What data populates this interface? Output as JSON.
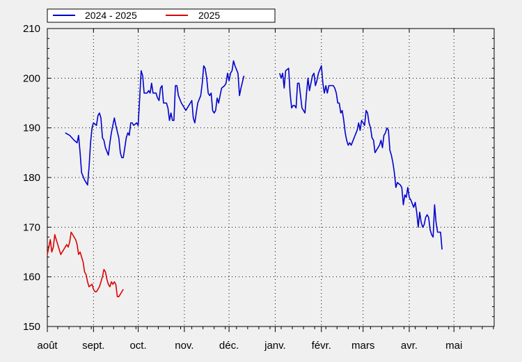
{
  "chart_data": {
    "type": "line",
    "title": "",
    "xlabel": "",
    "ylabel": "",
    "ylim": [
      150,
      210
    ],
    "yticks": [
      150,
      160,
      170,
      180,
      190,
      200,
      210
    ],
    "x_unit": "day index from start of August",
    "xlim": [
      0,
      300
    ],
    "xticks": [
      {
        "x": 0,
        "label": "août"
      },
      {
        "x": 31,
        "label": "sept."
      },
      {
        "x": 61,
        "label": "oct."
      },
      {
        "x": 92,
        "label": "nov."
      },
      {
        "x": 122,
        "label": "déc."
      },
      {
        "x": 153,
        "label": "janv."
      },
      {
        "x": 184,
        "label": "févr."
      },
      {
        "x": 212,
        "label": "mars"
      },
      {
        "x": 243,
        "label": "avr."
      },
      {
        "x": 273,
        "label": "mai"
      }
    ],
    "grid": true,
    "legend_position": "top-left",
    "series": [
      {
        "name": "2024 - 2025",
        "color": "#0000cc",
        "segments": [
          [
            [
              12,
              189
            ],
            [
              15,
              188.5
            ],
            [
              18,
              187.5
            ],
            [
              20,
              187
            ],
            [
              21,
              188.5
            ],
            [
              22,
              185
            ],
            [
              23,
              181
            ],
            [
              25,
              179.5
            ],
            [
              27,
              178.5
            ],
            [
              28,
              182
            ],
            [
              29,
              187
            ],
            [
              30,
              190
            ],
            [
              31,
              191
            ],
            [
              33,
              190.5
            ],
            [
              34,
              192.5
            ],
            [
              35,
              193
            ],
            [
              36,
              192
            ],
            [
              37,
              188
            ],
            [
              38,
              187.5
            ],
            [
              39,
              186
            ],
            [
              41,
              184.5
            ],
            [
              42,
              187
            ],
            [
              43,
              189
            ],
            [
              45,
              192
            ],
            [
              46,
              190.5
            ],
            [
              48,
              188
            ],
            [
              49,
              185
            ],
            [
              50,
              184
            ],
            [
              51,
              184
            ],
            [
              52,
              186
            ],
            [
              53,
              188
            ],
            [
              54,
              189
            ],
            [
              55,
              188.5
            ],
            [
              56,
              191
            ],
            [
              57,
              191
            ],
            [
              58,
              190.5
            ],
            [
              60,
              191
            ],
            [
              61,
              190.5
            ],
            [
              62,
              196
            ],
            [
              63,
              201.5
            ],
            [
              64,
              200.5
            ],
            [
              65,
              197
            ],
            [
              67,
              197
            ],
            [
              68,
              197.5
            ],
            [
              69,
              197
            ],
            [
              70,
              199
            ],
            [
              71,
              197
            ],
            [
              73,
              197
            ],
            [
              74,
              196
            ],
            [
              75,
              195.5
            ],
            [
              76,
              198
            ],
            [
              77,
              198.5
            ],
            [
              78,
              195
            ],
            [
              79,
              195
            ],
            [
              80,
              195
            ],
            [
              81,
              194
            ],
            [
              82,
              191.5
            ],
            [
              83,
              193
            ],
            [
              84,
              191.5
            ],
            [
              85,
              191.5
            ],
            [
              86,
              198.5
            ],
            [
              87,
              198.5
            ],
            [
              88,
              196.5
            ],
            [
              90,
              195
            ],
            [
              92,
              194
            ],
            [
              93,
              193.5
            ],
            [
              95,
              194.5
            ],
            [
              97,
              195.5
            ],
            [
              98,
              192
            ],
            [
              99,
              191
            ],
            [
              100,
              193
            ],
            [
              101,
              195
            ],
            [
              103,
              196.5
            ],
            [
              104,
              199
            ],
            [
              105,
              202.5
            ],
            [
              106,
              202
            ],
            [
              107,
              200
            ],
            [
              108,
              197
            ],
            [
              109,
              196.5
            ],
            [
              110,
              197
            ],
            [
              111,
              193.5
            ],
            [
              112,
              193
            ],
            [
              113,
              193.5
            ],
            [
              114,
              196
            ],
            [
              115,
              195
            ],
            [
              116,
              196.5
            ],
            [
              117,
              198
            ],
            [
              119,
              198.5
            ],
            [
              120,
              199
            ],
            [
              121,
              201
            ],
            [
              122,
              199.5
            ],
            [
              123,
              201
            ],
            [
              124,
              201.5
            ],
            [
              125,
              203.5
            ],
            [
              126,
              202.5
            ],
            [
              128,
              201
            ],
            [
              129,
              196.5
            ],
            [
              130,
              198
            ],
            [
              132,
              200.5
            ]
          ],
          [
            [
              156,
              201
            ],
            [
              157,
              200
            ],
            [
              158,
              201
            ],
            [
              159,
              198
            ],
            [
              160,
              201.5
            ],
            [
              162,
              202
            ],
            [
              163,
              197
            ],
            [
              164,
              194
            ],
            [
              165,
              194.5
            ],
            [
              166,
              194.5
            ],
            [
              167,
              194
            ],
            [
              168,
              199
            ],
            [
              169,
              199
            ],
            [
              170,
              196.5
            ],
            [
              171,
              194
            ],
            [
              173,
              193
            ],
            [
              174,
              197
            ],
            [
              175,
              200
            ],
            [
              176,
              197.5
            ],
            [
              178,
              200.5
            ],
            [
              179,
              201
            ],
            [
              180,
              198.5
            ],
            [
              181,
              199.5
            ],
            [
              182,
              201
            ],
            [
              184,
              202.5
            ],
            [
              185,
              199
            ],
            [
              186,
              197
            ],
            [
              187,
              198.5
            ],
            [
              188,
              197
            ],
            [
              189,
              198.5
            ],
            [
              192,
              198.5
            ],
            [
              193,
              198
            ],
            [
              194,
              197
            ],
            [
              195,
              195
            ],
            [
              196,
              195
            ],
            [
              197,
              193
            ],
            [
              198,
              193.5
            ],
            [
              199,
              191.5
            ],
            [
              200,
              189
            ],
            [
              201,
              187.5
            ],
            [
              202,
              186.5
            ],
            [
              203,
              187
            ],
            [
              204,
              186.5
            ],
            [
              206,
              188
            ],
            [
              208,
              189.5
            ],
            [
              209,
              191
            ],
            [
              210,
              189.5
            ],
            [
              211,
              191.5
            ],
            [
              212,
              191
            ],
            [
              213,
              190.5
            ],
            [
              214,
              193.5
            ],
            [
              215,
              193
            ],
            [
              216,
              191
            ],
            [
              217,
              190
            ],
            [
              218,
              188
            ],
            [
              219,
              187.5
            ],
            [
              220,
              185
            ],
            [
              221,
              185.5
            ],
            [
              223,
              186.5
            ],
            [
              224,
              187.5
            ],
            [
              225,
              186
            ],
            [
              226,
              188.5
            ],
            [
              227,
              189
            ],
            [
              228,
              190
            ],
            [
              229,
              189.5
            ],
            [
              230,
              185.5
            ],
            [
              231,
              184.5
            ],
            [
              232,
              183
            ],
            [
              233,
              181
            ],
            [
              234,
              178
            ],
            [
              235,
              179
            ],
            [
              237,
              178.5
            ],
            [
              238,
              178
            ],
            [
              239,
              174.5
            ],
            [
              240,
              176.5
            ],
            [
              241,
              176
            ],
            [
              242,
              178
            ],
            [
              243,
              176
            ],
            [
              244,
              175.5
            ],
            [
              246,
              174
            ],
            [
              247,
              175
            ],
            [
              248,
              173
            ],
            [
              249,
              170
            ],
            [
              250,
              173
            ],
            [
              251,
              171
            ],
            [
              252,
              170
            ],
            [
              253,
              170.5
            ],
            [
              254,
              172
            ],
            [
              255,
              172.5
            ],
            [
              256,
              172
            ],
            [
              257,
              169.5
            ],
            [
              258,
              168.5
            ],
            [
              259,
              168
            ],
            [
              260,
              174.5
            ],
            [
              261,
              171
            ],
            [
              262,
              169
            ],
            [
              264,
              169
            ],
            [
              265,
              165.5
            ]
          ]
        ]
      },
      {
        "name": "2025",
        "color": "#dd0000",
        "segments": [
          [
            [
              0,
              164.5
            ],
            [
              1,
              166
            ],
            [
              2,
              167.5
            ],
            [
              3,
              165
            ],
            [
              4,
              166
            ],
            [
              5,
              168.5
            ],
            [
              6,
              167.5
            ],
            [
              7,
              166.5
            ],
            [
              8,
              165.5
            ],
            [
              9,
              164.5
            ],
            [
              10,
              165
            ],
            [
              12,
              166
            ],
            [
              13,
              166.5
            ],
            [
              14,
              166
            ],
            [
              15,
              167
            ],
            [
              16,
              169
            ],
            [
              17,
              168.5
            ],
            [
              18,
              168
            ],
            [
              19,
              167.5
            ],
            [
              20,
              166.5
            ],
            [
              21,
              164.5
            ],
            [
              22,
              165
            ],
            [
              23,
              164
            ],
            [
              24,
              163
            ],
            [
              25,
              161
            ],
            [
              26,
              160.5
            ],
            [
              27,
              159
            ],
            [
              28,
              158
            ],
            [
              30,
              158.5
            ],
            [
              31,
              157.5
            ],
            [
              32,
              157
            ],
            [
              33,
              157
            ],
            [
              34,
              157.5
            ],
            [
              35,
              158
            ],
            [
              36,
              159
            ],
            [
              37,
              160
            ],
            [
              38,
              161.5
            ],
            [
              39,
              161
            ],
            [
              40,
              159.5
            ],
            [
              41,
              158.5
            ],
            [
              42,
              158
            ],
            [
              43,
              159
            ],
            [
              44,
              158.5
            ],
            [
              45,
              159
            ],
            [
              46,
              158.5
            ],
            [
              47,
              156
            ],
            [
              48,
              156
            ],
            [
              49,
              156.5
            ],
            [
              50,
              157
            ],
            [
              51,
              157.5
            ]
          ]
        ]
      }
    ]
  }
}
